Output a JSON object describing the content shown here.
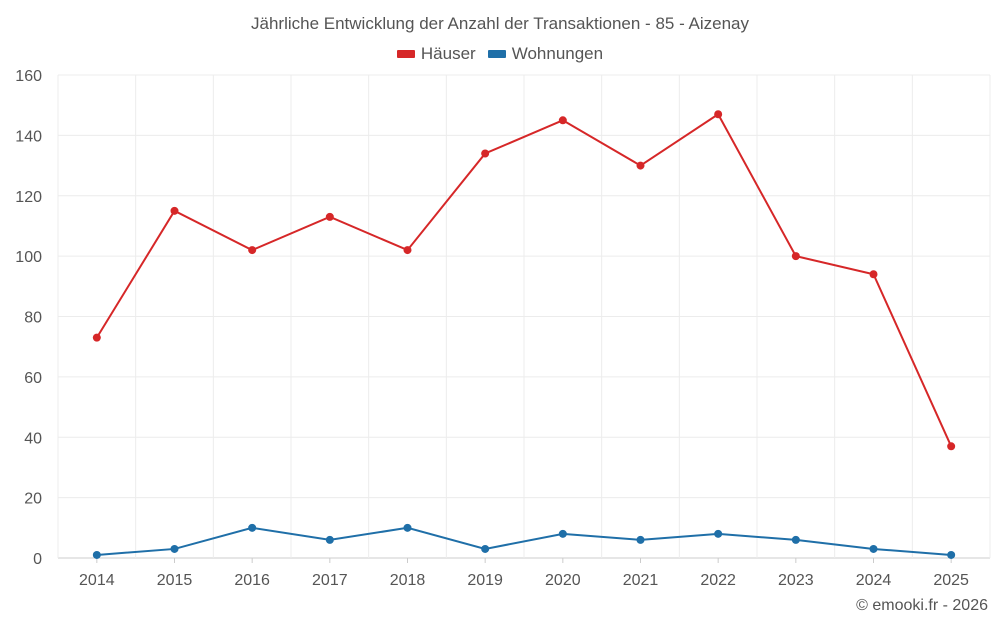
{
  "chart_data": {
    "type": "line",
    "title": "Jährliche Entwicklung der Anzahl der Transaktionen - 85 - Aizenay",
    "categories": [
      "2014",
      "2015",
      "2016",
      "2017",
      "2018",
      "2019",
      "2020",
      "2021",
      "2022",
      "2023",
      "2024",
      "2025"
    ],
    "series": [
      {
        "name": "Häuser",
        "color": "#d62728",
        "values": [
          73,
          115,
          102,
          113,
          102,
          134,
          145,
          130,
          147,
          100,
          94,
          37
        ]
      },
      {
        "name": "Wohnungen",
        "color": "#1f6fa8",
        "values": [
          1,
          3,
          10,
          6,
          10,
          3,
          8,
          6,
          8,
          6,
          3,
          1
        ]
      }
    ],
    "ylim": [
      0,
      160
    ],
    "yticks": [
      0,
      20,
      40,
      60,
      80,
      100,
      120,
      140,
      160
    ],
    "grid": true,
    "legend_position": "top-center"
  },
  "credit": "© emooki.fr - 2026"
}
